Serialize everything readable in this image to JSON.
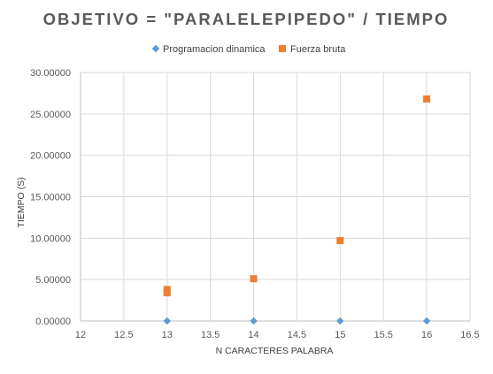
{
  "chart_data": {
    "type": "scatter",
    "title": "OBJETIVO = \"PARALELEPIPEDO\" / TIEMPO",
    "xlabel": "N CARACTERES PALABRA",
    "ylabel": "TIEMPO (S)",
    "xlim": [
      12,
      16.5
    ],
    "ylim": [
      0,
      30
    ],
    "x_ticks": [
      "12",
      "12.5",
      "13",
      "13.5",
      "14",
      "14.5",
      "15",
      "15.5",
      "16",
      "16.5"
    ],
    "y_ticks": [
      "0.00000",
      "5.00000",
      "10.00000",
      "15.00000",
      "20.00000",
      "25.00000",
      "30.00000"
    ],
    "grid": "vertical and horizontal",
    "legend_position": "top",
    "series": [
      {
        "name": "Programacion dinamica",
        "marker": "diamond",
        "color": "#5b9bd5",
        "points": [
          [
            13,
            0.0
          ],
          [
            14,
            0.0
          ],
          [
            15,
            0.0
          ],
          [
            16,
            0.0
          ]
        ]
      },
      {
        "name": "Fuerza bruta",
        "marker": "square",
        "color": "#ed7d31",
        "points": [
          [
            13,
            3.4
          ],
          [
            13,
            3.8
          ],
          [
            14,
            5.1
          ],
          [
            15,
            9.7
          ],
          [
            16,
            26.8
          ]
        ]
      }
    ]
  }
}
